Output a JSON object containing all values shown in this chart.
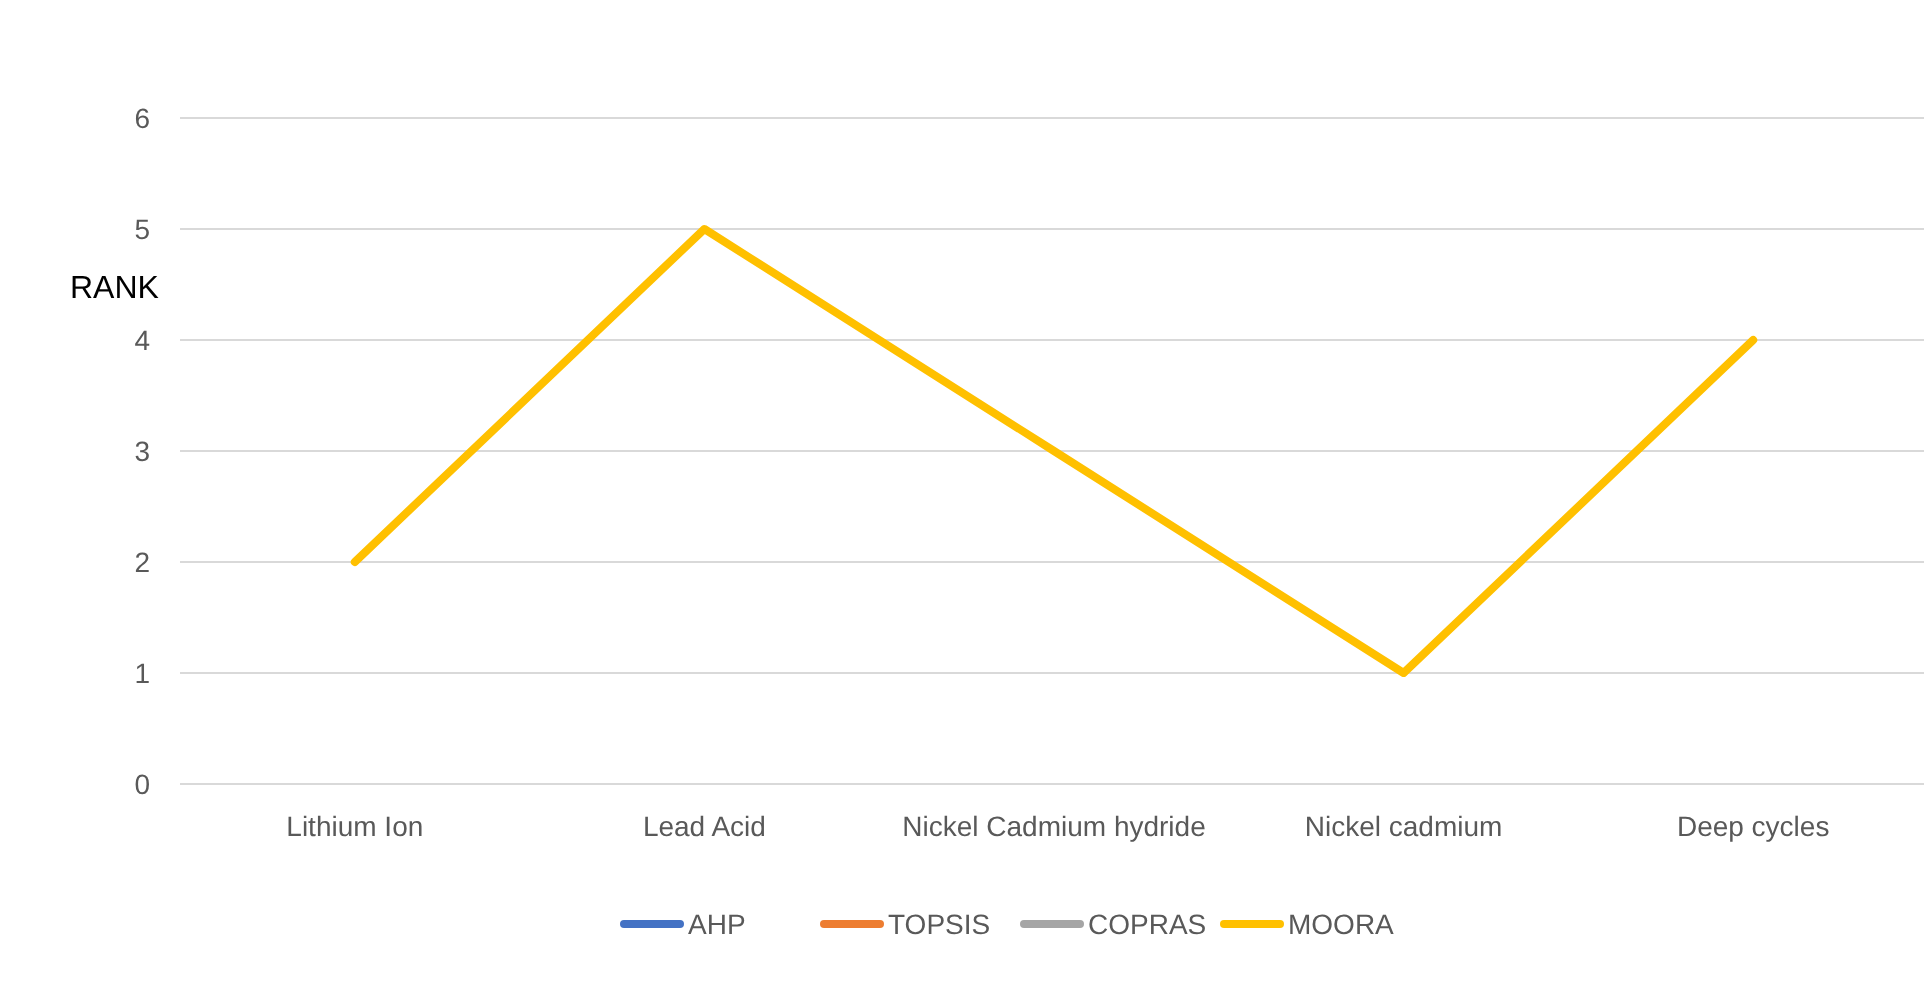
{
  "chart_data": {
    "type": "line",
    "ylabel": "RANK",
    "categories": [
      "Lithium Ion",
      "Lead Acid",
      "Nickel Cadmium hydride",
      "Nickel cadmium",
      "Deep cycles"
    ],
    "series": [
      {
        "name": "AHP",
        "color": "#4472c4",
        "values": [
          null,
          null,
          null,
          null,
          null
        ]
      },
      {
        "name": "TOPSIS",
        "color": "#ed7d31",
        "values": [
          null,
          null,
          null,
          null,
          null
        ]
      },
      {
        "name": "COPRAS",
        "color": "#a5a5a5",
        "values": [
          null,
          null,
          null,
          null,
          null
        ]
      },
      {
        "name": "MOORA",
        "color": "#ffc000",
        "values": [
          2,
          5,
          3,
          1,
          4
        ]
      }
    ],
    "ylim": [
      0,
      6
    ],
    "yticks": [
      0,
      1,
      2,
      3,
      4,
      5,
      6
    ],
    "grid": "y",
    "legend": "bottom",
    "marker": "none",
    "line_style": "solid"
  }
}
